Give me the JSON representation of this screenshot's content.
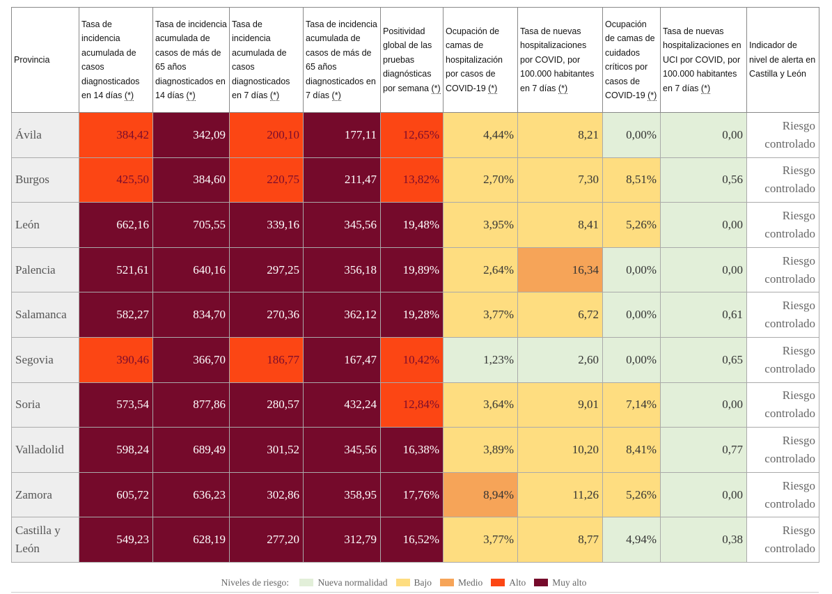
{
  "table": {
    "headers": [
      {
        "text": "Provincia"
      },
      {
        "text": "Tasa de incidencia acumulada de casos diagnosticados en 14 días",
        "note": "(*)"
      },
      {
        "text": "Tasa de incidencia acumulada de casos de más de 65 años diagnosticados en 14 días",
        "note": "(*)"
      },
      {
        "text": "Tasa de incidencia acumulada de casos diagnosticados en 7 días",
        "note": "(*)"
      },
      {
        "text": "Tasa de incidencia acumulada de casos de más de 65 años diagnosticados en 7 días",
        "note": "(*)"
      },
      {
        "text": "Positividad global de las pruebas diagnósticas por semana",
        "note": "(*)"
      },
      {
        "text": "Ocupación de camas de hospitalización por casos de COVID-19",
        "note": "(*)"
      },
      {
        "text": "Tasa de nuevas hospitalizaciones por COVID, por 100.000 habitantes en 7 días",
        "note": "(*)"
      },
      {
        "text": "Ocupación de camas de cuidados críticos por casos de COVID-19",
        "note": "(*)"
      },
      {
        "text": "Tasa de nuevas hospitalizaciones en UCI por COVID, por 100.000 habitantes en 7 días",
        "note": "(*)"
      },
      {
        "text": "Indicador de nivel de alerta en Castilla y León"
      }
    ],
    "rows": [
      {
        "provincia": "Ávila",
        "cells": [
          "384,42",
          "342,09",
          "200,10",
          "177,11",
          "12,65%",
          "4,44%",
          "8,21",
          "0,00%",
          "0,00",
          "Riesgo controlado"
        ],
        "levels": [
          3,
          4,
          3,
          4,
          3,
          1,
          1,
          0,
          0,
          null
        ]
      },
      {
        "provincia": "Burgos",
        "cells": [
          "425,50",
          "384,60",
          "220,75",
          "211,47",
          "13,82%",
          "2,70%",
          "7,30",
          "8,51%",
          "0,56",
          "Riesgo controlado"
        ],
        "levels": [
          3,
          4,
          3,
          4,
          3,
          1,
          1,
          1,
          0,
          null
        ]
      },
      {
        "provincia": "León",
        "cells": [
          "662,16",
          "705,55",
          "339,16",
          "345,56",
          "19,48%",
          "3,95%",
          "8,41",
          "5,26%",
          "0,00",
          "Riesgo controlado"
        ],
        "levels": [
          4,
          4,
          4,
          4,
          4,
          1,
          1,
          1,
          0,
          null
        ]
      },
      {
        "provincia": "Palencia",
        "cells": [
          "521,61",
          "640,16",
          "297,25",
          "356,18",
          "19,89%",
          "2,64%",
          "16,34",
          "0,00%",
          "0,00",
          "Riesgo controlado"
        ],
        "levels": [
          4,
          4,
          4,
          4,
          4,
          1,
          2,
          0,
          0,
          null
        ]
      },
      {
        "provincia": "Salamanca",
        "cells": [
          "582,27",
          "834,70",
          "270,36",
          "362,12",
          "19,28%",
          "3,77%",
          "6,72",
          "0,00%",
          "0,61",
          "Riesgo controlado"
        ],
        "levels": [
          4,
          4,
          4,
          4,
          4,
          1,
          1,
          0,
          0,
          null
        ]
      },
      {
        "provincia": "Segovia",
        "cells": [
          "390,46",
          "366,70",
          "186,77",
          "167,47",
          "10,42%",
          "1,23%",
          "2,60",
          "0,00%",
          "0,65",
          "Riesgo controlado"
        ],
        "levels": [
          3,
          4,
          3,
          4,
          3,
          0,
          0,
          0,
          0,
          null
        ]
      },
      {
        "provincia": "Soria",
        "cells": [
          "573,54",
          "877,86",
          "280,57",
          "432,24",
          "12,84%",
          "3,64%",
          "9,01",
          "7,14%",
          "0,00",
          "Riesgo controlado"
        ],
        "levels": [
          4,
          4,
          4,
          4,
          3,
          1,
          1,
          1,
          0,
          null
        ]
      },
      {
        "provincia": "Valladolid",
        "cells": [
          "598,24",
          "689,49",
          "301,52",
          "345,56",
          "16,38%",
          "3,89%",
          "10,20",
          "8,41%",
          "0,77",
          "Riesgo controlado"
        ],
        "levels": [
          4,
          4,
          4,
          4,
          4,
          1,
          1,
          1,
          0,
          null
        ]
      },
      {
        "provincia": "Zamora",
        "cells": [
          "605,72",
          "636,23",
          "302,86",
          "358,95",
          "17,76%",
          "8,94%",
          "11,26",
          "5,26%",
          "0,00",
          "Riesgo controlado"
        ],
        "levels": [
          4,
          4,
          4,
          4,
          4,
          2,
          1,
          1,
          0,
          null
        ]
      },
      {
        "provincia": "Castilla y León",
        "cells": [
          "549,23",
          "628,19",
          "277,20",
          "312,79",
          "16,52%",
          "3,77%",
          "8,77",
          "4,94%",
          "0,38",
          "Riesgo controlado"
        ],
        "levels": [
          4,
          4,
          4,
          4,
          4,
          1,
          1,
          0,
          0,
          null
        ]
      }
    ]
  },
  "legend": {
    "title": "Niveles de riesgo:",
    "levels": [
      {
        "name": "Nueva normalidad",
        "color": "#e2efd9",
        "text_color": "#333333"
      },
      {
        "name": "Bajo",
        "color": "#fedd80",
        "text_color": "#333333"
      },
      {
        "name": "Medio",
        "color": "#f6a458",
        "text_color": "#333333"
      },
      {
        "name": "Alto",
        "color": "#fc4614",
        "text_color": "#7a0c2e"
      },
      {
        "name": "Muy alto",
        "color": "#750a2b",
        "text_color": "#ffffff"
      }
    ]
  }
}
